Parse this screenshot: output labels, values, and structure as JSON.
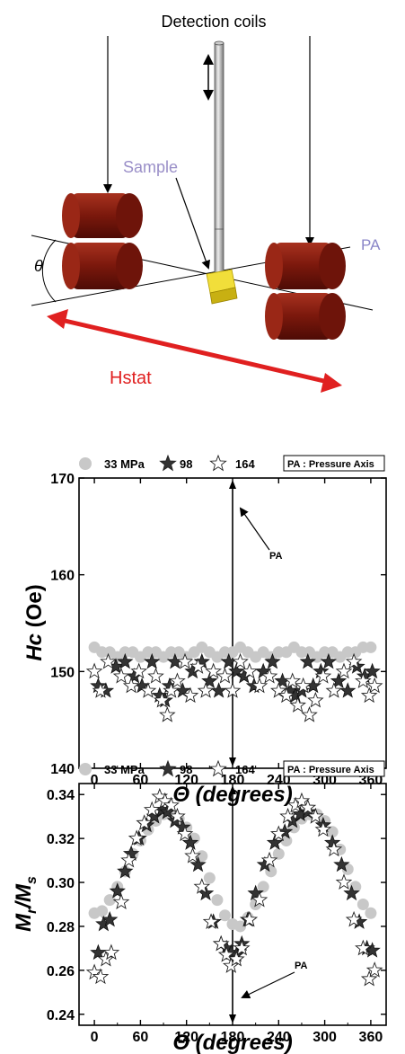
{
  "schematic": {
    "detection_coils_label": "Detection coils",
    "sample_label": "Sample",
    "angle_label": "θ",
    "pa_label": "PA",
    "hstat_label": "Hstat",
    "colors": {
      "coil_red": "#8c1a0f",
      "coil_dark": "#5a0d06",
      "sample_yellow": "#e8d21a",
      "sample_label_color": "#9a8fc8",
      "pa_label_color": "#8a86c8",
      "hstat_color": "#e02020"
    }
  },
  "legend": {
    "series_1_label": "33 MPa",
    "series_2_label": "98",
    "series_3_label": "164",
    "pressure_axis_label": "PA : Pressure Axis"
  },
  "chart_data": [
    {
      "type": "scatter",
      "xlabel": "Θ (degrees)",
      "ylabel_main": "Hc",
      "ylabel_unit": " (Oe)",
      "xlim": [
        -20,
        380
      ],
      "ylim": [
        140,
        170
      ],
      "xticks": [
        0,
        60,
        120,
        180,
        240,
        300,
        360
      ],
      "yticks": [
        140,
        150,
        160,
        170
      ],
      "ytick_labels": [
        "140",
        "150",
        "160",
        "170"
      ],
      "pa_marker": {
        "x": 180,
        "label": "PA"
      },
      "series": [
        {
          "name": "33 MPa",
          "marker": "circle-gray",
          "x": [
            0,
            10,
            20,
            30,
            40,
            50,
            60,
            70,
            80,
            90,
            100,
            110,
            120,
            130,
            140,
            150,
            160,
            170,
            180,
            190,
            200,
            210,
            220,
            230,
            240,
            250,
            260,
            270,
            280,
            290,
            300,
            310,
            320,
            330,
            340,
            350,
            360
          ],
          "y": [
            152.5,
            152,
            152,
            151.5,
            152,
            152,
            151.5,
            152,
            152,
            151.5,
            152,
            152,
            151.5,
            152,
            152.5,
            152,
            151.5,
            152,
            152,
            152.5,
            152,
            151.5,
            152,
            151.5,
            152,
            152,
            152.5,
            152,
            152,
            151.5,
            152,
            152,
            151.5,
            152,
            152,
            152.5,
            152.5
          ]
        },
        {
          "name": "98",
          "marker": "star-filled",
          "x": [
            5,
            15,
            28,
            40,
            52,
            62,
            75,
            85,
            92,
            98,
            105,
            115,
            128,
            140,
            150,
            162,
            175,
            185,
            195,
            208,
            220,
            232,
            245,
            255,
            262,
            270,
            278,
            285,
            295,
            305,
            318,
            330,
            342,
            352,
            362
          ],
          "y": [
            148.5,
            148,
            150.5,
            151,
            149.5,
            148.5,
            151,
            147.5,
            147,
            148.5,
            151,
            148,
            150,
            151,
            149,
            148,
            151,
            150,
            149.5,
            148.5,
            150,
            151,
            149,
            148,
            147.5,
            148,
            151,
            148.5,
            150,
            151,
            149,
            148,
            150.5,
            149.5,
            150
          ]
        },
        {
          "name": "164",
          "marker": "star-open",
          "x": [
            0,
            8,
            18,
            35,
            48,
            58,
            70,
            80,
            88,
            95,
            100,
            108,
            118,
            125,
            135,
            145,
            155,
            170,
            180,
            190,
            202,
            215,
            228,
            240,
            250,
            258,
            265,
            272,
            280,
            288,
            298,
            312,
            325,
            338,
            350,
            358,
            365
          ],
          "y": [
            150,
            148,
            151,
            149.5,
            148.5,
            150,
            148,
            149.5,
            147,
            145.5,
            148,
            149,
            151,
            147.5,
            150.5,
            148,
            150,
            149.5,
            148,
            151,
            150,
            148.5,
            149.5,
            148,
            147.5,
            149,
            146.5,
            148.5,
            145.5,
            147,
            149.5,
            148,
            150,
            151,
            149,
            147.5,
            148.5
          ]
        }
      ]
    },
    {
      "type": "scatter",
      "xlabel": "Θ (degrees)",
      "ylabel_main": "M",
      "ylabel_sub1": "r",
      "ylabel_mid": "/M",
      "ylabel_sub2": "s",
      "xlim": [
        -20,
        380
      ],
      "ylim": [
        0.235,
        0.345
      ],
      "xticks": [
        0,
        60,
        120,
        180,
        240,
        300,
        360
      ],
      "yticks": [
        0.24,
        0.26,
        0.28,
        0.3,
        0.32,
        0.34
      ],
      "ytick_labels": [
        "0.24",
        "0.26",
        "0.28",
        "0.30",
        "0.32",
        "0.34"
      ],
      "pa_marker": {
        "x": 180,
        "label": "PA"
      },
      "series": [
        {
          "name": "33 MPa",
          "marker": "circle-gray",
          "x": [
            0,
            10,
            20,
            30,
            40,
            50,
            60,
            70,
            80,
            90,
            100,
            110,
            120,
            130,
            140,
            150,
            160,
            170,
            180,
            190,
            200,
            210,
            220,
            230,
            240,
            250,
            260,
            270,
            280,
            290,
            300,
            310,
            320,
            330,
            340,
            350,
            360
          ],
          "y": [
            0.286,
            0.287,
            0.292,
            0.298,
            0.305,
            0.313,
            0.319,
            0.324,
            0.328,
            0.331,
            0.331,
            0.329,
            0.325,
            0.32,
            0.312,
            0.302,
            0.292,
            0.285,
            0.281,
            0.28,
            0.284,
            0.29,
            0.298,
            0.305,
            0.313,
            0.319,
            0.325,
            0.329,
            0.331,
            0.331,
            0.328,
            0.323,
            0.315,
            0.306,
            0.298,
            0.29,
            0.286
          ]
        },
        {
          "name": "98",
          "marker": "star-filled",
          "x": [
            5,
            12,
            20,
            30,
            40,
            48,
            58,
            68,
            78,
            88,
            95,
            105,
            115,
            125,
            135,
            145,
            155,
            165,
            172,
            178,
            185,
            192,
            200,
            210,
            222,
            235,
            248,
            258,
            268,
            278,
            288,
            298,
            310,
            322,
            335,
            345,
            355,
            362
          ],
          "y": [
            0.268,
            0.281,
            0.283,
            0.296,
            0.305,
            0.313,
            0.32,
            0.326,
            0.33,
            0.333,
            0.332,
            0.328,
            0.325,
            0.318,
            0.308,
            0.295,
            0.282,
            0.272,
            0.27,
            0.268,
            0.267,
            0.272,
            0.283,
            0.295,
            0.308,
            0.318,
            0.323,
            0.328,
            0.331,
            0.332,
            0.33,
            0.326,
            0.318,
            0.308,
            0.295,
            0.282,
            0.27,
            0.269
          ]
        },
        {
          "name": "164",
          "marker": "star-open",
          "x": [
            0,
            8,
            15,
            22,
            35,
            45,
            55,
            65,
            75,
            85,
            92,
            100,
            108,
            118,
            128,
            140,
            152,
            165,
            172,
            178,
            185,
            192,
            202,
            215,
            228,
            240,
            252,
            262,
            270,
            278,
            288,
            298,
            312,
            325,
            338,
            350,
            358,
            365
          ],
          "y": [
            0.259,
            0.257,
            0.265,
            0.268,
            0.291,
            0.31,
            0.32,
            0.327,
            0.333,
            0.339,
            0.337,
            0.335,
            0.33,
            0.322,
            0.312,
            0.298,
            0.282,
            0.272,
            0.267,
            0.262,
            0.265,
            0.27,
            0.283,
            0.292,
            0.31,
            0.322,
            0.33,
            0.335,
            0.337,
            0.334,
            0.33,
            0.324,
            0.315,
            0.3,
            0.283,
            0.27,
            0.256,
            0.26
          ]
        }
      ]
    }
  ]
}
